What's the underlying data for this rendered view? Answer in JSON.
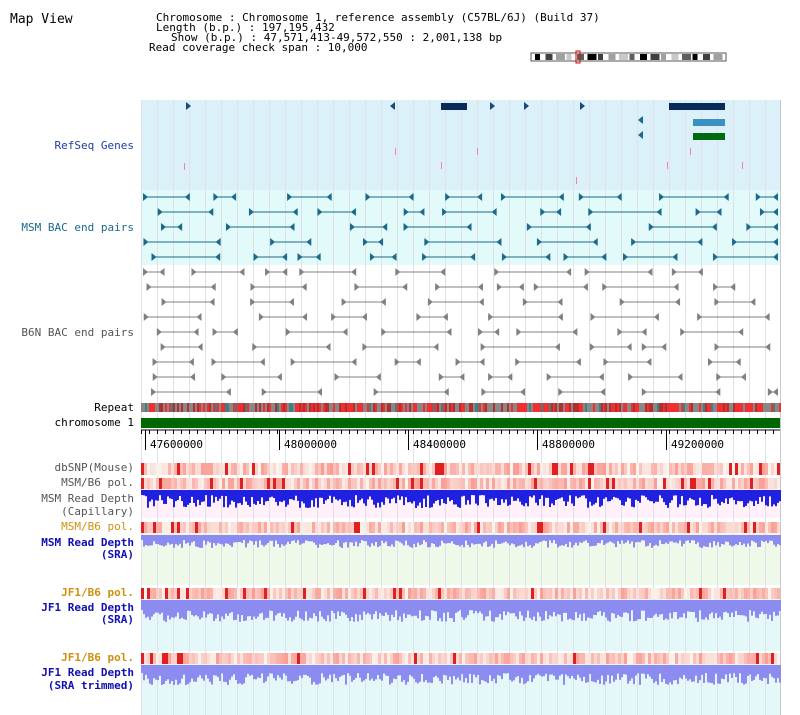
{
  "view": {
    "title": "Map View",
    "info": [
      "Chromosome      : Chromosome 1, reference assembly (C57BL/6J) (Build 37)",
      "Length (b.p.) : 197,195,432",
      "Show (b.p.) : 47,571,413-49,572,550 : 2,001,138 bp",
      "Read coverage check span : 10,000"
    ]
  },
  "tracks": {
    "refseq": "RefSeq Genes",
    "msm_bac": "MSM BAC end pairs",
    "b6n_bac": "B6N BAC end pairs",
    "repeat": "Repeat",
    "chrom": "chromosome 1",
    "dbsnp": "dbSNP(Mouse)",
    "msm_b6_pol_1": "MSM/B6 pol.",
    "msm_depth_cap_1": "MSM Read Depth",
    "msm_depth_cap_2": "(Capillary)",
    "msm_b6_pol_2": "MSM/B6 pol.",
    "msm_depth_sra_1": "MSM Read Depth",
    "msm_depth_sra_2": "(SRA)",
    "jf1_b6_pol_1": "JF1/B6 pol.",
    "jf1_depth_sra_1": "JF1 Read Depth",
    "jf1_depth_sra_2": "(SRA)",
    "jf1_b6_pol_2": "JF1/B6 pol.",
    "jf1_depth_trim_1": "JF1 Read Depth",
    "jf1_depth_trim_2": "(SRA trimmed)"
  },
  "axis": {
    "ticks": [
      "47600000",
      "48000000",
      "48400000",
      "48800000",
      "49200000"
    ]
  },
  "colors": {
    "refseq_bg": "#dcf0fa",
    "msm_bac_bg": "#e2fafa",
    "msm_feature": "#1a6a8c",
    "b6n_feature": "#808080",
    "chrom_bar": "#006600",
    "depth_capillary": "#2020e0",
    "depth_sra": "#8c8cf0",
    "pol_red": "#f03030",
    "label_blue": "#1e3ca0",
    "label_teal": "#1a6a8c",
    "label_gray": "#555555",
    "label_orange": "#d09010",
    "label_navy": "#1010b0"
  }
}
